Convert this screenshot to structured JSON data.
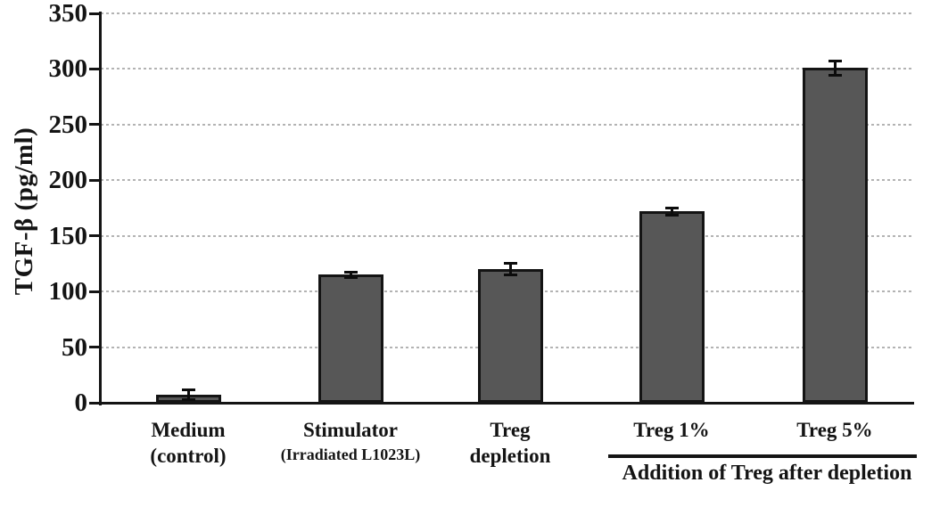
{
  "chart_data": {
    "type": "bar",
    "title": "",
    "xlabel": "",
    "ylabel": "TGF-β (pg/ml)",
    "ylim": [
      0,
      350
    ],
    "yticks": [
      0,
      50,
      100,
      150,
      200,
      250,
      300,
      350
    ],
    "grid": "horizontal-dotted",
    "legend": "none",
    "categories": [
      {
        "lines": [
          "Medium",
          "(control)"
        ]
      },
      {
        "lines": [
          "Stimulator",
          "(Irradiated L1023L)"
        ],
        "line2_small": true
      },
      {
        "lines": [
          "Treg",
          "depletion"
        ]
      },
      {
        "lines": [
          "Treg 1%"
        ]
      },
      {
        "lines": [
          "Treg 5%"
        ]
      }
    ],
    "values": [
      7,
      115,
      120,
      172,
      301
    ],
    "errors": [
      4,
      2,
      5,
      3,
      6
    ],
    "colors": {
      "bar_fill": "#575757",
      "bar_border": "#141414",
      "grid": "#b3b3b3",
      "axis": "#141414",
      "text": "#141414"
    },
    "group_annotation": {
      "label": "Addition of Treg after depletion",
      "applies_to": [
        "Treg 1%",
        "Treg 5%"
      ]
    }
  }
}
